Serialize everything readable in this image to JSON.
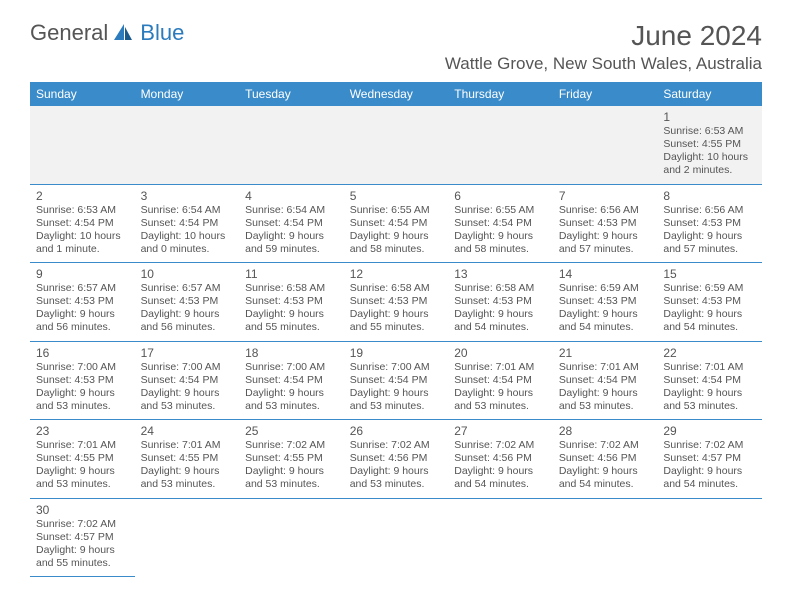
{
  "logo": {
    "general": "General",
    "blue": "Blue"
  },
  "title": "June 2024",
  "location": "Wattle Grove, New South Wales, Australia",
  "dayHeaders": [
    "Sunday",
    "Monday",
    "Tuesday",
    "Wednesday",
    "Thursday",
    "Friday",
    "Saturday"
  ],
  "colors": {
    "headerBg": "#3a8bc9",
    "headerText": "#ffffff",
    "border": "#3a8bc9",
    "text": "#555555",
    "firstRowBg": "#f2f2f2"
  },
  "weeks": [
    [
      null,
      null,
      null,
      null,
      null,
      null,
      {
        "day": "1",
        "sunrise": "Sunrise: 6:53 AM",
        "sunset": "Sunset: 4:55 PM",
        "daylight": "Daylight: 10 hours and 2 minutes."
      }
    ],
    [
      {
        "day": "2",
        "sunrise": "Sunrise: 6:53 AM",
        "sunset": "Sunset: 4:54 PM",
        "daylight": "Daylight: 10 hours and 1 minute."
      },
      {
        "day": "3",
        "sunrise": "Sunrise: 6:54 AM",
        "sunset": "Sunset: 4:54 PM",
        "daylight": "Daylight: 10 hours and 0 minutes."
      },
      {
        "day": "4",
        "sunrise": "Sunrise: 6:54 AM",
        "sunset": "Sunset: 4:54 PM",
        "daylight": "Daylight: 9 hours and 59 minutes."
      },
      {
        "day": "5",
        "sunrise": "Sunrise: 6:55 AM",
        "sunset": "Sunset: 4:54 PM",
        "daylight": "Daylight: 9 hours and 58 minutes."
      },
      {
        "day": "6",
        "sunrise": "Sunrise: 6:55 AM",
        "sunset": "Sunset: 4:54 PM",
        "daylight": "Daylight: 9 hours and 58 minutes."
      },
      {
        "day": "7",
        "sunrise": "Sunrise: 6:56 AM",
        "sunset": "Sunset: 4:53 PM",
        "daylight": "Daylight: 9 hours and 57 minutes."
      },
      {
        "day": "8",
        "sunrise": "Sunrise: 6:56 AM",
        "sunset": "Sunset: 4:53 PM",
        "daylight": "Daylight: 9 hours and 57 minutes."
      }
    ],
    [
      {
        "day": "9",
        "sunrise": "Sunrise: 6:57 AM",
        "sunset": "Sunset: 4:53 PM",
        "daylight": "Daylight: 9 hours and 56 minutes."
      },
      {
        "day": "10",
        "sunrise": "Sunrise: 6:57 AM",
        "sunset": "Sunset: 4:53 PM",
        "daylight": "Daylight: 9 hours and 56 minutes."
      },
      {
        "day": "11",
        "sunrise": "Sunrise: 6:58 AM",
        "sunset": "Sunset: 4:53 PM",
        "daylight": "Daylight: 9 hours and 55 minutes."
      },
      {
        "day": "12",
        "sunrise": "Sunrise: 6:58 AM",
        "sunset": "Sunset: 4:53 PM",
        "daylight": "Daylight: 9 hours and 55 minutes."
      },
      {
        "day": "13",
        "sunrise": "Sunrise: 6:58 AM",
        "sunset": "Sunset: 4:53 PM",
        "daylight": "Daylight: 9 hours and 54 minutes."
      },
      {
        "day": "14",
        "sunrise": "Sunrise: 6:59 AM",
        "sunset": "Sunset: 4:53 PM",
        "daylight": "Daylight: 9 hours and 54 minutes."
      },
      {
        "day": "15",
        "sunrise": "Sunrise: 6:59 AM",
        "sunset": "Sunset: 4:53 PM",
        "daylight": "Daylight: 9 hours and 54 minutes."
      }
    ],
    [
      {
        "day": "16",
        "sunrise": "Sunrise: 7:00 AM",
        "sunset": "Sunset: 4:53 PM",
        "daylight": "Daylight: 9 hours and 53 minutes."
      },
      {
        "day": "17",
        "sunrise": "Sunrise: 7:00 AM",
        "sunset": "Sunset: 4:54 PM",
        "daylight": "Daylight: 9 hours and 53 minutes."
      },
      {
        "day": "18",
        "sunrise": "Sunrise: 7:00 AM",
        "sunset": "Sunset: 4:54 PM",
        "daylight": "Daylight: 9 hours and 53 minutes."
      },
      {
        "day": "19",
        "sunrise": "Sunrise: 7:00 AM",
        "sunset": "Sunset: 4:54 PM",
        "daylight": "Daylight: 9 hours and 53 minutes."
      },
      {
        "day": "20",
        "sunrise": "Sunrise: 7:01 AM",
        "sunset": "Sunset: 4:54 PM",
        "daylight": "Daylight: 9 hours and 53 minutes."
      },
      {
        "day": "21",
        "sunrise": "Sunrise: 7:01 AM",
        "sunset": "Sunset: 4:54 PM",
        "daylight": "Daylight: 9 hours and 53 minutes."
      },
      {
        "day": "22",
        "sunrise": "Sunrise: 7:01 AM",
        "sunset": "Sunset: 4:54 PM",
        "daylight": "Daylight: 9 hours and 53 minutes."
      }
    ],
    [
      {
        "day": "23",
        "sunrise": "Sunrise: 7:01 AM",
        "sunset": "Sunset: 4:55 PM",
        "daylight": "Daylight: 9 hours and 53 minutes."
      },
      {
        "day": "24",
        "sunrise": "Sunrise: 7:01 AM",
        "sunset": "Sunset: 4:55 PM",
        "daylight": "Daylight: 9 hours and 53 minutes."
      },
      {
        "day": "25",
        "sunrise": "Sunrise: 7:02 AM",
        "sunset": "Sunset: 4:55 PM",
        "daylight": "Daylight: 9 hours and 53 minutes."
      },
      {
        "day": "26",
        "sunrise": "Sunrise: 7:02 AM",
        "sunset": "Sunset: 4:56 PM",
        "daylight": "Daylight: 9 hours and 53 minutes."
      },
      {
        "day": "27",
        "sunrise": "Sunrise: 7:02 AM",
        "sunset": "Sunset: 4:56 PM",
        "daylight": "Daylight: 9 hours and 54 minutes."
      },
      {
        "day": "28",
        "sunrise": "Sunrise: 7:02 AM",
        "sunset": "Sunset: 4:56 PM",
        "daylight": "Daylight: 9 hours and 54 minutes."
      },
      {
        "day": "29",
        "sunrise": "Sunrise: 7:02 AM",
        "sunset": "Sunset: 4:57 PM",
        "daylight": "Daylight: 9 hours and 54 minutes."
      }
    ],
    [
      {
        "day": "30",
        "sunrise": "Sunrise: 7:02 AM",
        "sunset": "Sunset: 4:57 PM",
        "daylight": "Daylight: 9 hours and 55 minutes."
      },
      null,
      null,
      null,
      null,
      null,
      null
    ]
  ]
}
